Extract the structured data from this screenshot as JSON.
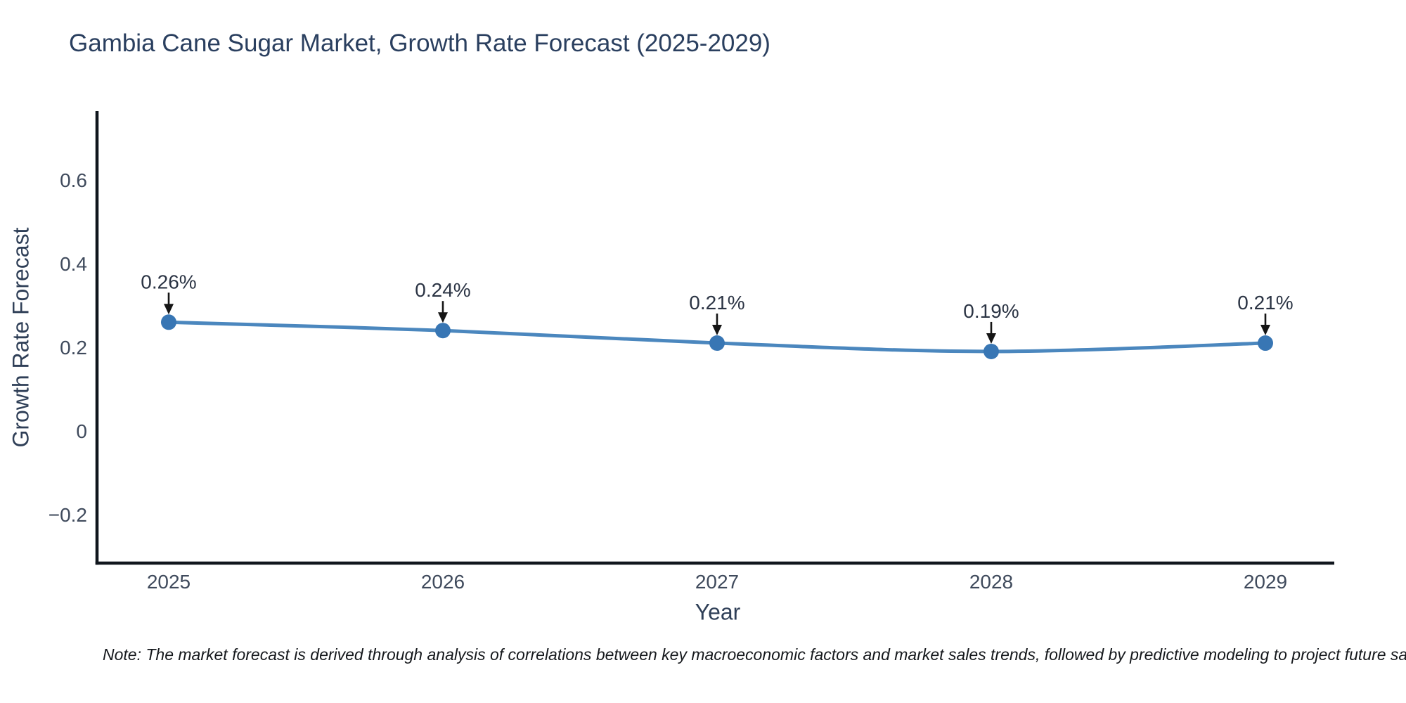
{
  "header": {
    "title": "Gambia Cane Sugar Market, Growth Rate Forecast (2025-2029)"
  },
  "footer": {
    "note": "Note: The market forecast is derived through analysis of correlations between key macroeconomic factors and market sales trends, followed by predictive modeling to project future sa"
  },
  "chart_data": {
    "type": "line",
    "title": "Gambia Cane Sugar Market, Growth Rate Forecast (2025-2029)",
    "xlabel": "Year",
    "ylabel": "Growth Rate Forecast",
    "x": [
      2025,
      2026,
      2027,
      2028,
      2029
    ],
    "values": [
      0.26,
      0.24,
      0.21,
      0.19,
      0.21
    ],
    "point_labels": [
      "0.26%",
      "0.24%",
      "0.21%",
      "0.19%",
      "0.21%"
    ],
    "xtick_labels": [
      "2025",
      "2026",
      "2027",
      "2028",
      "2029"
    ],
    "yticks": [
      -0.2,
      0,
      0.2,
      0.4,
      0.6
    ],
    "ytick_labels": [
      "−0.2",
      "0",
      "0.2",
      "0.4",
      "0.6"
    ],
    "xlim": [
      2024.7385,
      2029.2513
    ],
    "ylim": [
      -0.316,
      0.7647
    ],
    "grid": false,
    "legend": false,
    "line_shape": "spline",
    "line_color": "#4b87be",
    "marker_color": "#3876b4",
    "axis_color": "#10161d",
    "tick_color": "#3f4a5c",
    "annotation_text_color": "#2b3444",
    "annotation_arrow_color": "#151515"
  }
}
